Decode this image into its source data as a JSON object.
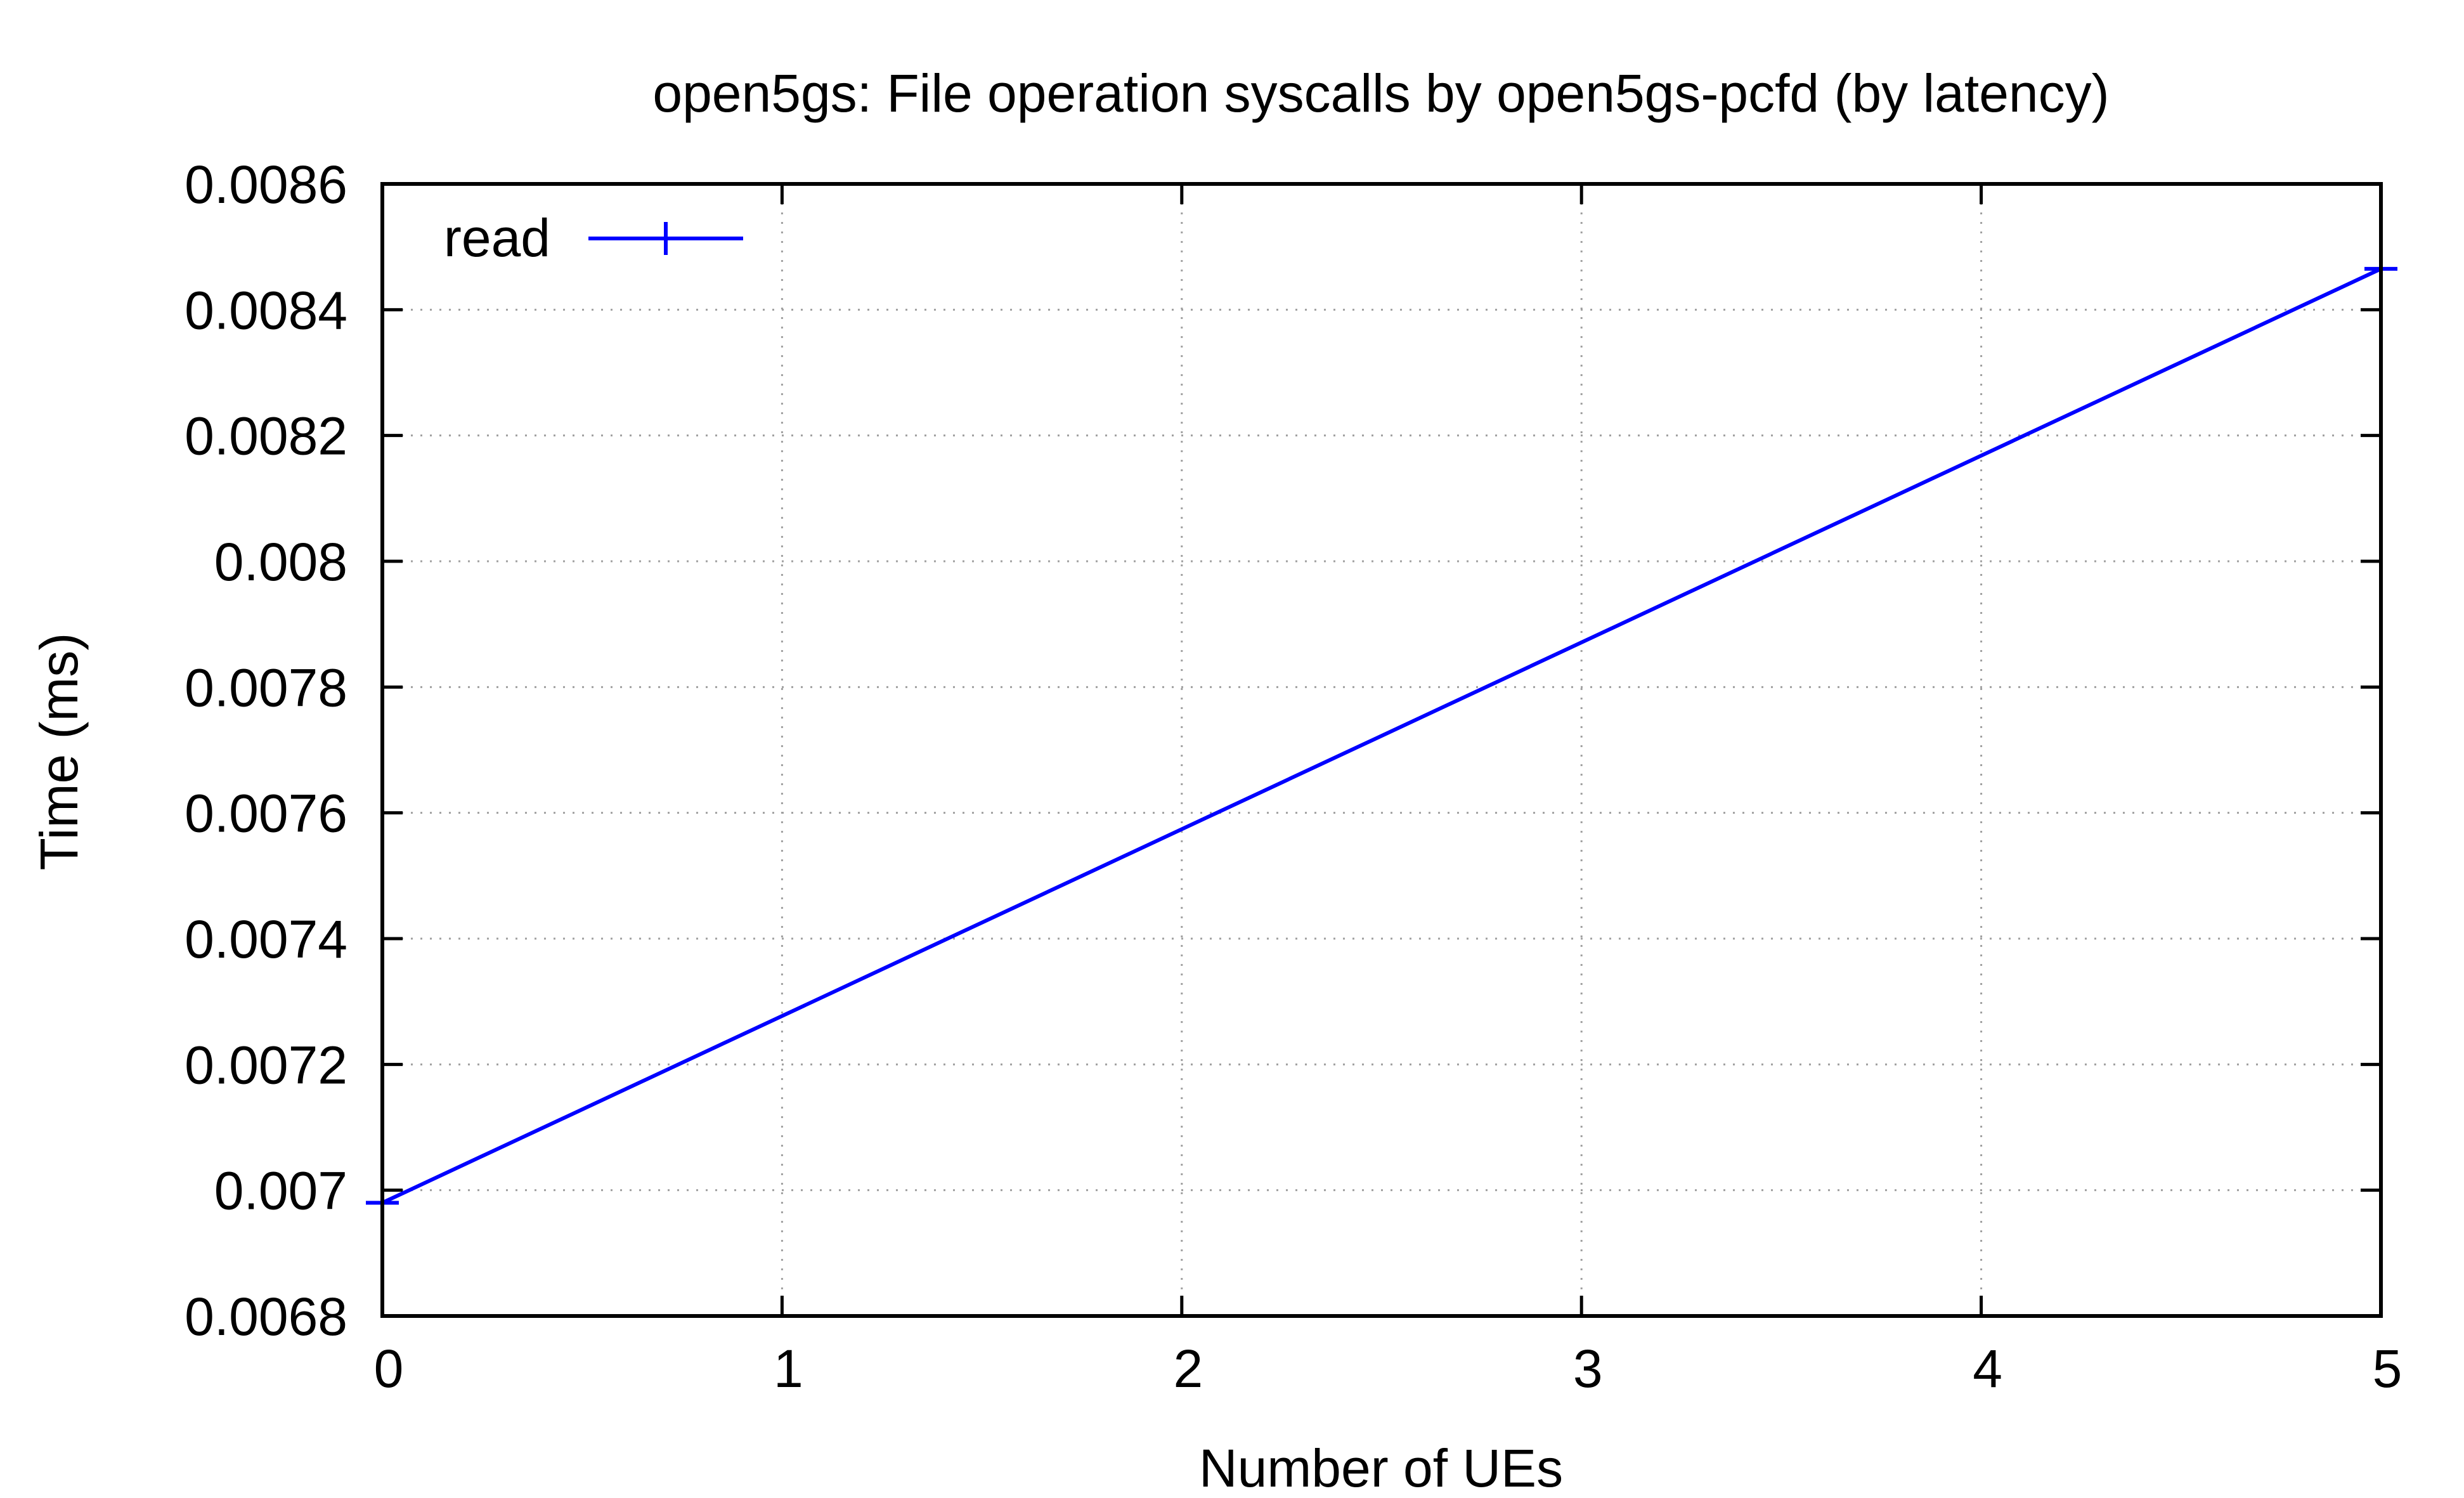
{
  "chart_data": {
    "type": "line",
    "title": "open5gs: File operation syscalls by open5gs-pcfd (by latency)",
    "xlabel": "Number of UEs",
    "ylabel": "Time (ms)",
    "xlim": [
      0,
      5
    ],
    "ylim": [
      0.0068,
      0.0086
    ],
    "x_ticks": [
      "0",
      "1",
      "2",
      "3",
      "4",
      "5"
    ],
    "y_ticks": [
      "0.0068",
      "0.007",
      "0.0072",
      "0.0074",
      "0.0076",
      "0.0078",
      "0.008",
      "0.0082",
      "0.0084",
      "0.0086"
    ],
    "grid": true,
    "legend_position": "top-left",
    "series": [
      {
        "name": "read",
        "color": "#0000ff",
        "marker": "plus",
        "x": [
          0,
          5
        ],
        "y": [
          0.00698,
          0.008465
        ]
      }
    ]
  }
}
